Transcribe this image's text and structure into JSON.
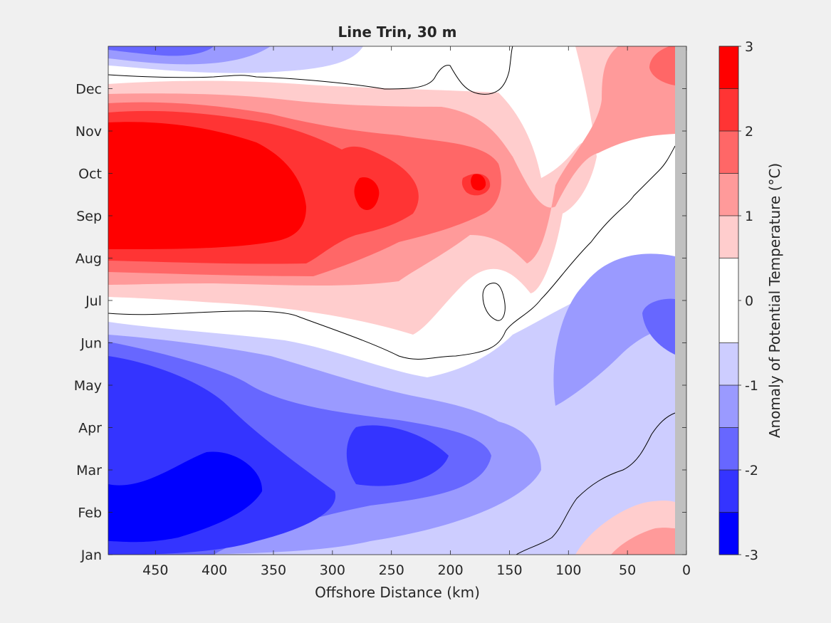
{
  "chart_data": {
    "type": "heatmap",
    "subtype": "filled-contour",
    "title": "Line Trin, 30 m",
    "xlabel": "Offshore Distance (km)",
    "ylabel": "",
    "xlim": [
      490,
      0
    ],
    "x_reversed": true,
    "xticks": [
      450,
      400,
      350,
      300,
      250,
      200,
      150,
      100,
      50,
      0
    ],
    "yticks": [
      "Jan",
      "Feb",
      "Mar",
      "Apr",
      "May",
      "Jun",
      "Jul",
      "Aug",
      "Sep",
      "Oct",
      "Nov",
      "Dec"
    ],
    "colorbar": {
      "label": "Anomaly of Potential Temperature (°C)",
      "range": [
        -3,
        3
      ],
      "ticks": [
        -3,
        -2,
        -1,
        0,
        1,
        2,
        3
      ],
      "levels": [
        -3,
        -2.5,
        -2,
        -1.5,
        -1,
        -0.5,
        0.5,
        1,
        1.5,
        2,
        2.5,
        3
      ],
      "colors": [
        "#0000ff",
        "#3434ff",
        "#6767ff",
        "#9a9aff",
        "#cdcdff",
        "#ffffff",
        "#ffcdcd",
        "#ff9a9a",
        "#ff6767",
        "#ff3434",
        "#ff0000"
      ]
    },
    "no_data_color": "#c0c0c0",
    "zero_contour": true,
    "grid": false
  }
}
